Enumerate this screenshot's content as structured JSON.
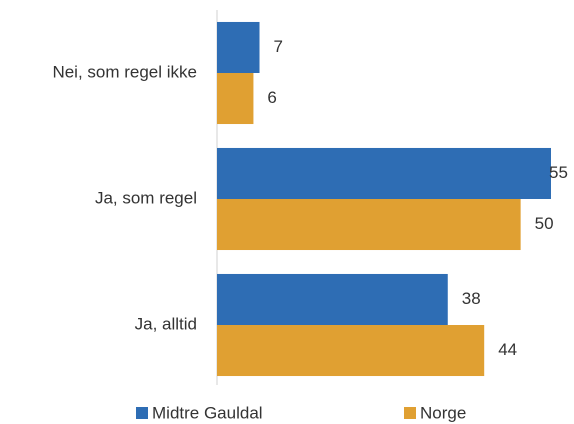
{
  "chart_data": {
    "type": "barh",
    "categories": [
      "Nei, som regel ikke",
      "Ja, som regel",
      "Ja, alltid"
    ],
    "series": [
      {
        "name": "Midtre Gauldal",
        "color": "#2e6db4",
        "values": [
          7,
          55,
          38
        ]
      },
      {
        "name": "Norge",
        "color": "#e0a032",
        "values": [
          6,
          50,
          44
        ]
      }
    ],
    "xlim": [
      0,
      55
    ]
  }
}
